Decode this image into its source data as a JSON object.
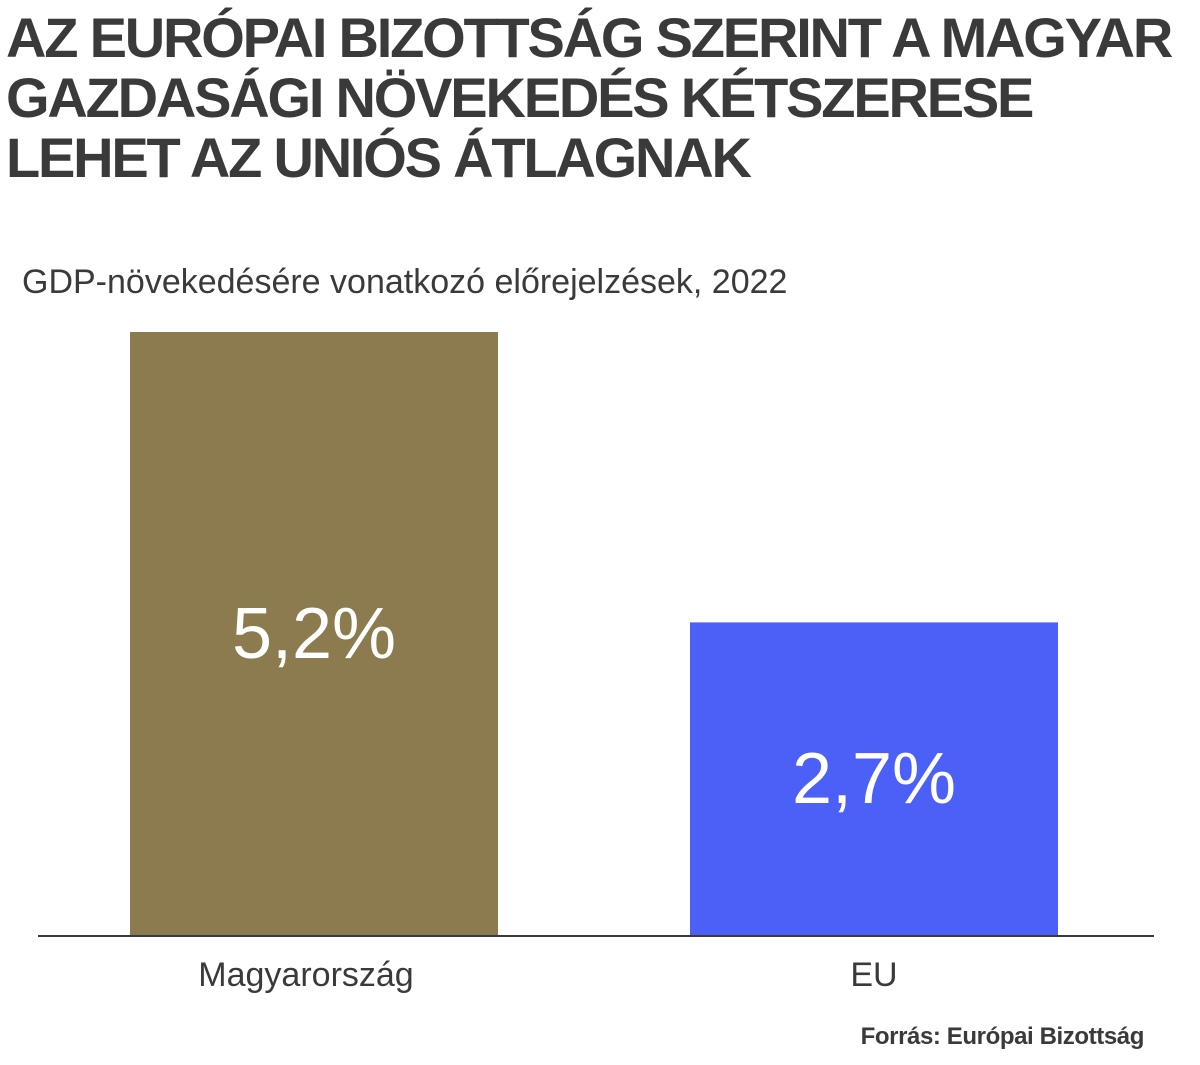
{
  "chart_data": {
    "type": "bar",
    "title": [
      "AZ EURÓPAI BIZOTTSÁG SZERINT A MAGYAR",
      "GAZDASÁGI NÖVEKEDÉS KÉTSZERESE",
      "LEHET AZ UNIÓS ÁTLAGNAK"
    ],
    "subtitle": "GDP-növekedésére vonatkozó előrejelzések, 2022",
    "categories": [
      "Magyarország",
      "EU"
    ],
    "values": [
      5.2,
      2.7
    ],
    "data_labels": [
      "5,2%",
      "2,7%"
    ],
    "colors": [
      "#8b7b4e",
      "#4a60f7"
    ],
    "ylim": [
      0,
      5.2
    ],
    "grid": false,
    "source": "Forrás: Európai Bizottság"
  }
}
